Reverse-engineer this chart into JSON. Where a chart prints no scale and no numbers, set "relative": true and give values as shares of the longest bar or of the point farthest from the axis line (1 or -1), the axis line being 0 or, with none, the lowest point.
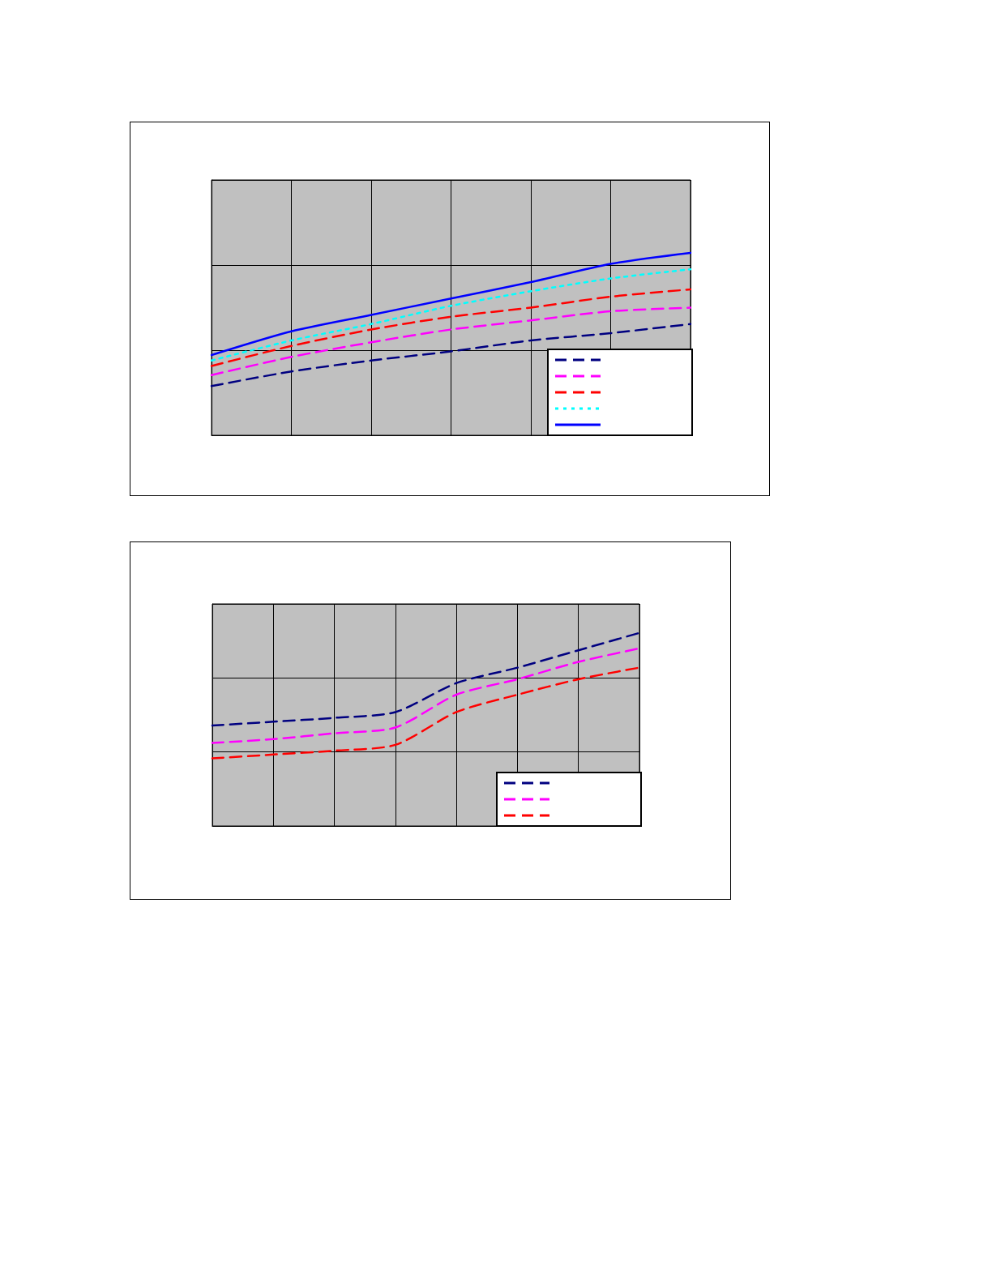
{
  "chart_data": [
    {
      "type": "line",
      "relative": true,
      "grid": true,
      "marker": "none",
      "categories": [
        null,
        null,
        null,
        null,
        null,
        null,
        null
      ],
      "series": [
        {
          "color": "#000080",
          "line_style": "dashed",
          "values": [
            0.27,
            0.35,
            0.41,
            0.46,
            0.52,
            0.56,
            0.61
          ]
        },
        {
          "color": "#ff00ff",
          "line_style": "dashed",
          "values": [
            0.33,
            0.43,
            0.51,
            0.58,
            0.63,
            0.68,
            0.7
          ]
        },
        {
          "color": "#ff0000",
          "line_style": "dashed",
          "values": [
            0.38,
            0.49,
            0.58,
            0.65,
            0.7,
            0.76,
            0.8
          ]
        },
        {
          "color": "#00ffff",
          "line_style": "dotted",
          "values": [
            0.41,
            0.52,
            0.61,
            0.71,
            0.79,
            0.86,
            0.91
          ]
        },
        {
          "color": "#0000ff",
          "line_style": "solid",
          "values": [
            0.44,
            0.57,
            0.66,
            0.75,
            0.84,
            0.94,
            1
          ]
        }
      ]
    },
    {
      "type": "line",
      "relative": true,
      "grid": true,
      "marker": "none",
      "categories": [
        null,
        null,
        null,
        null,
        null,
        null,
        null,
        null
      ],
      "series": [
        {
          "color": "#000080",
          "line_style": "dashed",
          "values": [
            0.52,
            0.54,
            0.56,
            0.59,
            0.74,
            0.82,
            0.91,
            1
          ]
        },
        {
          "color": "#ff00ff",
          "line_style": "dashed",
          "values": [
            0.43,
            0.45,
            0.48,
            0.51,
            0.68,
            0.76,
            0.85,
            0.92
          ]
        },
        {
          "color": "#ff0000",
          "line_style": "dashed",
          "values": [
            0.35,
            0.37,
            0.39,
            0.42,
            0.59,
            0.68,
            0.76,
            0.82
          ]
        }
      ]
    }
  ]
}
